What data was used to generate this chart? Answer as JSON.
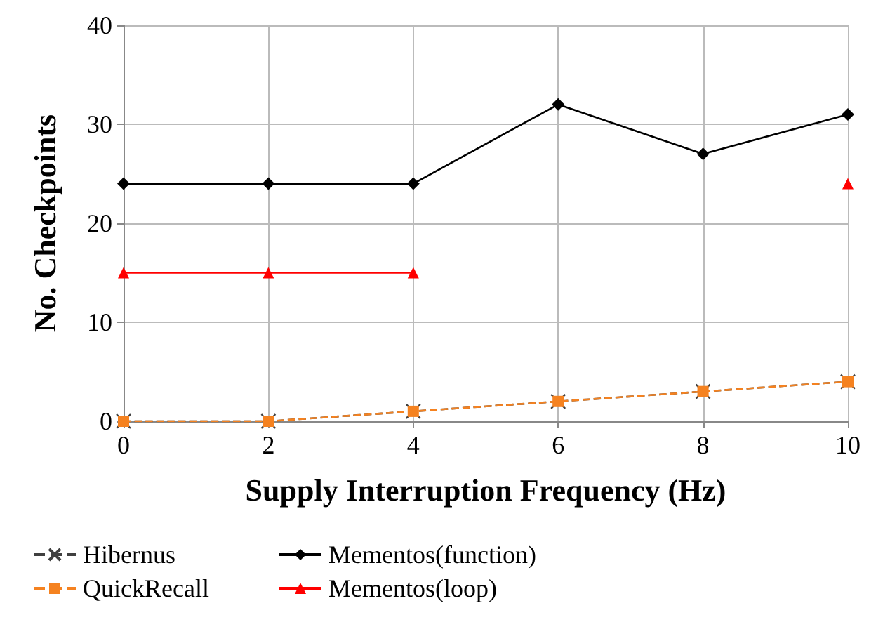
{
  "chart_data": {
    "type": "line",
    "xlabel": "Supply Interruption Frequency (Hz)",
    "ylabel": "No. Checkpoints",
    "x": [
      0,
      2,
      4,
      6,
      8,
      10
    ],
    "xlim": [
      0,
      10
    ],
    "xticks": [
      0,
      2,
      4,
      6,
      8,
      10
    ],
    "ylim": [
      0,
      40
    ],
    "yticks": [
      0,
      10,
      20,
      30,
      40
    ],
    "grid": true,
    "legend": "bottom",
    "series": [
      {
        "name": "Hibernus",
        "color": "#404040",
        "marker": "cross",
        "line_style": "dashed",
        "values": [
          0,
          0,
          1,
          2,
          3,
          4
        ]
      },
      {
        "name": "Mementos(function)",
        "color": "#000000",
        "marker": "diamond",
        "line_style": "solid",
        "values": [
          24,
          24,
          24,
          32,
          27,
          31
        ]
      },
      {
        "name": "QuickRecall",
        "color": "#f58220",
        "marker": "square",
        "line_style": "dashed",
        "values": [
          0,
          0,
          1,
          2,
          3,
          4
        ]
      },
      {
        "name": "Mementos(loop)",
        "color": "#ff0000",
        "marker": "triangle",
        "line_style": "solid",
        "values": [
          15,
          15,
          15,
          null,
          null,
          24
        ]
      }
    ]
  }
}
